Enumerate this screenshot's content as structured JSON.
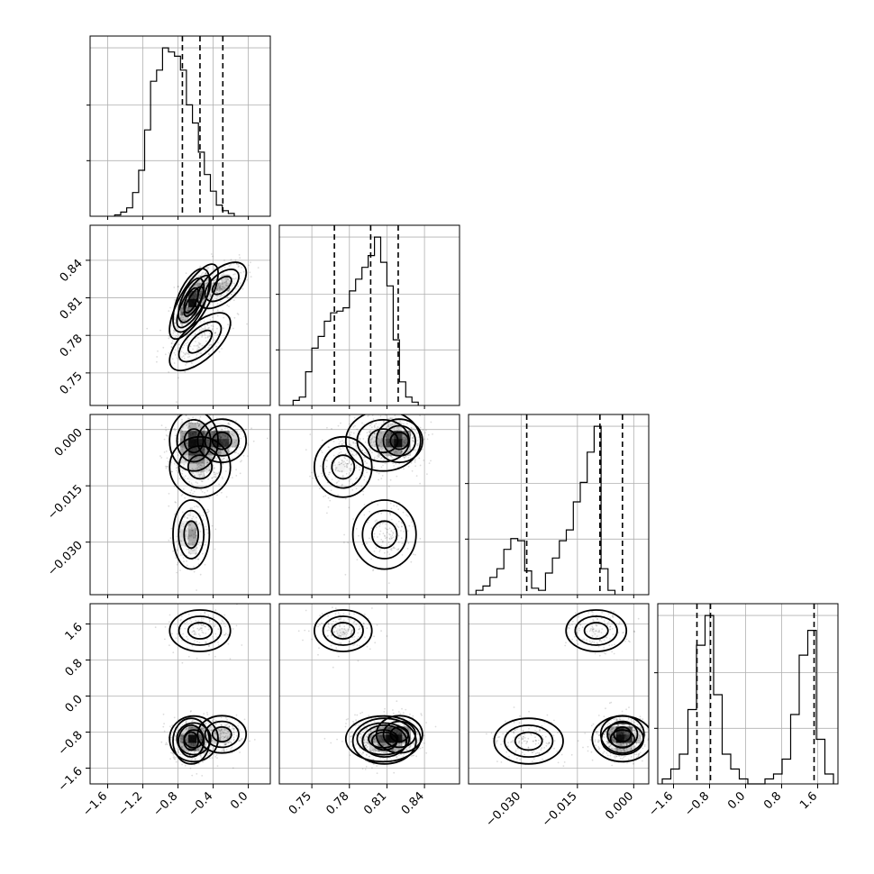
{
  "chart_data": {
    "type": "corner",
    "params": [
      {
        "ticks": [
          -1.6,
          -1.2,
          -0.8,
          -0.4,
          0.0
        ],
        "tick_labels": [
          "−1.6",
          "−1.2",
          "−0.8",
          "−0.4",
          "0.0"
        ],
        "range": [
          -1.8,
          0.25
        ],
        "hist": {
          "edges_from": -1.52,
          "bin_width": 0.068,
          "counts": [
            1,
            3,
            6,
            17,
            33,
            62,
            97,
            105,
            121,
            118,
            115,
            105,
            80,
            67,
            46,
            30,
            18,
            8,
            4,
            2
          ]
        },
        "quantiles": [
          -0.75,
          -0.55,
          -0.29
        ]
      },
      {
        "ticks": [
          0.75,
          0.78,
          0.81,
          0.84
        ],
        "tick_labels": [
          "0.75",
          "0.78",
          "0.81",
          "0.84"
        ],
        "range": [
          0.724,
          0.868
        ],
        "hist": {
          "edges_from": 0.735,
          "bin_width": 0.005,
          "counts": [
            3,
            5,
            20,
            34,
            41,
            50,
            55,
            56,
            58,
            68,
            75,
            82,
            89,
            100,
            85,
            71,
            39,
            14,
            5,
            2
          ]
        },
        "quantiles": [
          0.768,
          0.797,
          0.819
        ]
      },
      {
        "ticks": [
          0.0,
          -0.015,
          -0.03
        ],
        "tick_labels": [
          "0.000",
          "−0.015",
          "−0.030"
        ],
        "range": [
          -0.044,
          0.004
        ],
        "hist": {
          "edges_from": -0.042,
          "bin_width": 0.00185,
          "counts": [
            2,
            4,
            8,
            12,
            21,
            26,
            25,
            11,
            3,
            2,
            10,
            17,
            25,
            30,
            43,
            52,
            66,
            78,
            12,
            2
          ]
        },
        "quantiles": [
          -0.0285,
          -0.009,
          -0.003
        ]
      },
      {
        "ticks": [
          -1.6,
          -0.8,
          0.0,
          0.8,
          1.6
        ],
        "tick_labels": [
          "−1.6",
          "−0.8",
          "0.0",
          "0.8",
          "1.6"
        ],
        "range": [
          -1.95,
          2.05
        ],
        "hist": {
          "edges_from": -1.85,
          "bin_width": 0.19,
          "counts": [
            1,
            3,
            6,
            15,
            28,
            34,
            18,
            6,
            3,
            1,
            0,
            0,
            1,
            2,
            5,
            14,
            26,
            31,
            9,
            2
          ]
        },
        "quantiles": [
          -1.08,
          -0.78,
          1.52
        ]
      }
    ],
    "modes": [
      {
        "x": [
          -0.62,
          0.807,
          -0.003,
          -0.95
        ],
        "sd": [
          0.12,
          0.013,
          0.0035,
          0.22
        ],
        "w": 0.35,
        "rho01": 0.75
      },
      {
        "x": [
          -0.3,
          0.82,
          -0.003,
          -0.85
        ],
        "sd": [
          0.12,
          0.008,
          0.0025,
          0.18
        ],
        "w": 0.25,
        "rho01": 0.55
      },
      {
        "x": [
          -0.55,
          0.775,
          -0.01,
          1.45
        ],
        "sd": [
          0.15,
          0.01,
          0.0035,
          0.2
        ],
        "w": 0.2,
        "rho01": 0.65
      },
      {
        "x": [
          -0.65,
          0.808,
          -0.028,
          -1.0
        ],
        "sd": [
          0.09,
          0.011,
          0.004,
          0.22
        ],
        "w": 0.2,
        "rho01": 0.6
      }
    ],
    "grid": true,
    "histogram_style": "step",
    "quantile_lines": "dashed",
    "colors": {
      "line": "#000000",
      "grid": "#b0b0b0",
      "points": "#000000"
    }
  }
}
